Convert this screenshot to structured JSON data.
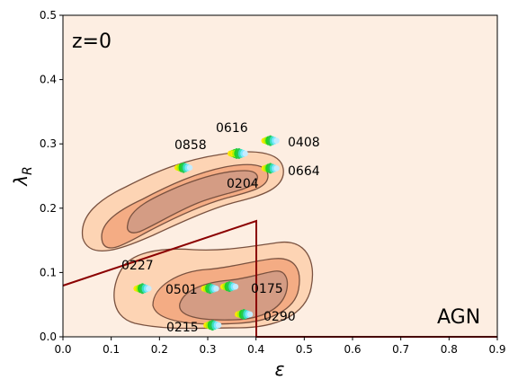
{
  "chart_data": {
    "type": "scatter",
    "xlabel": "ε",
    "ylabel": "λ_R",
    "xlim": [
      0.0,
      0.9
    ],
    "ylim": [
      0.0,
      0.5
    ],
    "x_ticks": [
      "0.0",
      "0.1",
      "0.2",
      "0.3",
      "0.4",
      "0.5",
      "0.6",
      "0.7",
      "0.8",
      "0.9"
    ],
    "y_ticks": [
      "0.0",
      "0.1",
      "0.2",
      "0.3",
      "0.4",
      "0.5"
    ],
    "grid": false,
    "annotations": {
      "redshift": "z=0",
      "sample": "AGN"
    },
    "colors": {
      "background": "#fdeee2",
      "contour_outer": "#fdd4b4",
      "contour_mid": "#f4ac84",
      "contour_inner": "#d49c84",
      "contour_line": "#7a5240",
      "boundary_line": "#8b0000"
    },
    "points": [
      {
        "label": "0408",
        "x": 0.43,
        "y": 0.305
      },
      {
        "label": "0616",
        "x": 0.36,
        "y": 0.285
      },
      {
        "label": "0858",
        "x": 0.25,
        "y": 0.263
      },
      {
        "label": "0664",
        "x": 0.43,
        "y": 0.262
      },
      {
        "label": "0204",
        "x": 0.365,
        "y": 0.285
      },
      {
        "label": "0227",
        "x": 0.165,
        "y": 0.075
      },
      {
        "label": "0501",
        "x": 0.305,
        "y": 0.075
      },
      {
        "label": "0175",
        "x": 0.345,
        "y": 0.078
      },
      {
        "label": "0290",
        "x": 0.375,
        "y": 0.035
      },
      {
        "label": "0215",
        "x": 0.31,
        "y": 0.018
      }
    ]
  }
}
